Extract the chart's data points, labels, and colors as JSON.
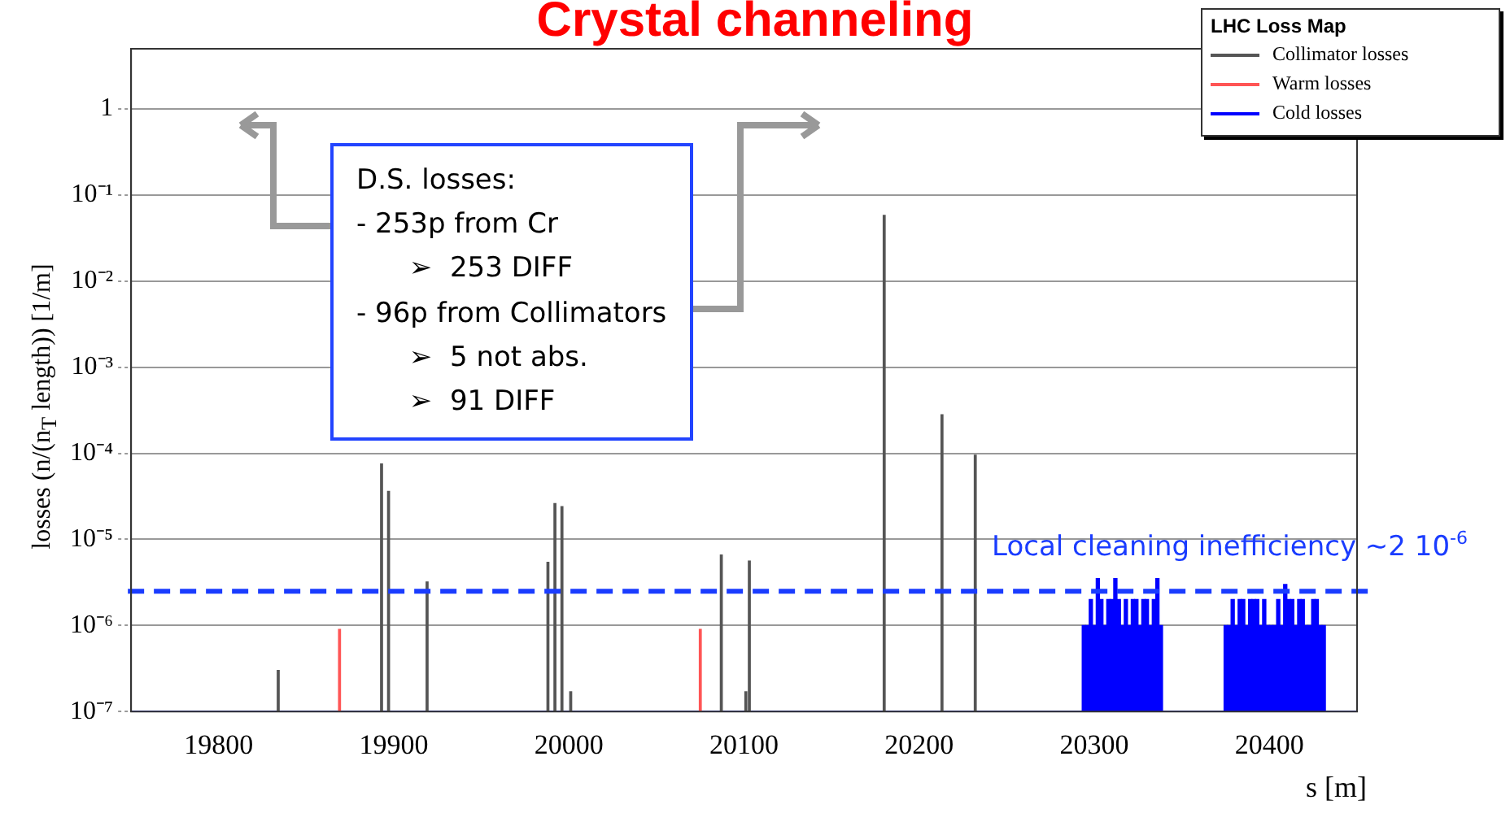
{
  "chart_data": {
    "type": "bar",
    "title": "Crystal channeling",
    "xlabel": "s [m]",
    "ylabel": "losses (n/(n$_{T}$ length)) [1/m]",
    "legend_title": "LHC Loss Map",
    "legend": "top right",
    "grid": "y",
    "log": "y",
    "xlim": [
      19750,
      20450
    ],
    "xticks": [
      19800,
      19900,
      20000,
      20100,
      20200,
      20300,
      20400
    ],
    "ylim": [
      1e-07,
      5
    ],
    "yticks": [
      {
        "value": 1e-07,
        "label": "10⁻⁷"
      },
      {
        "value": 1e-06,
        "label": "10⁻⁶"
      },
      {
        "value": 1e-05,
        "label": "10⁻⁵"
      },
      {
        "value": 0.0001,
        "label": "10⁻⁴"
      },
      {
        "value": 0.001,
        "label": "10⁻³"
      },
      {
        "value": 0.01,
        "label": "10⁻²"
      },
      {
        "value": 0.1,
        "label": "10⁻¹"
      },
      1
    ],
    "series": [
      {
        "name": "Collimator losses",
        "color": "#555555",
        "x": [
          19834,
          19893,
          19897,
          19919,
          19988,
          19992,
          19996,
          20001,
          20087,
          20101,
          20103,
          20180,
          20213,
          20232
        ],
        "values": [
          3e-07,
          7.5e-05,
          3.6e-05,
          3.2e-06,
          5.4e-06,
          2.6e-05,
          2.4e-05,
          1.7e-07,
          6.6e-06,
          1.7e-07,
          5.6e-06,
          0.058,
          0.00028,
          9.5e-05
        ]
      },
      {
        "name": "Warm losses",
        "color": "#ff5555",
        "x": [
          19869,
          20075
        ],
        "values": [
          9e-07,
          9e-07
        ]
      },
      {
        "name": "Cold losses",
        "color": "#0000ff",
        "x": [
          20294,
          20296,
          20298,
          20300,
          20302,
          20304,
          20306,
          20308,
          20310,
          20312,
          20314,
          20316,
          20318,
          20320,
          20322,
          20324,
          20326,
          20328,
          20330,
          20332,
          20334,
          20336,
          20338,
          20375,
          20377,
          20379,
          20381,
          20383,
          20385,
          20387,
          20389,
          20391,
          20393,
          20395,
          20397,
          20399,
          20401,
          20403,
          20405,
          20407,
          20409,
          20411,
          20413,
          20415,
          20417,
          20419,
          20421,
          20423,
          20425,
          20427,
          20429,
          20431
        ],
        "values": [
          1e-06,
          1e-06,
          2e-06,
          1e-06,
          3.5e-06,
          2e-06,
          1e-06,
          2e-06,
          2e-06,
          3.5e-06,
          2e-06,
          1e-06,
          2e-06,
          1e-06,
          2e-06,
          2e-06,
          1e-06,
          2e-06,
          2e-06,
          1e-06,
          2e-06,
          3.5e-06,
          1e-06,
          1e-06,
          1e-06,
          2e-06,
          1e-06,
          2e-06,
          2e-06,
          1e-06,
          2e-06,
          2e-06,
          2e-06,
          1e-06,
          2e-06,
          1e-06,
          1e-06,
          1e-06,
          2e-06,
          1e-06,
          3e-06,
          2e-06,
          2e-06,
          1e-06,
          2e-06,
          2e-06,
          1e-06,
          1e-06,
          2e-06,
          2e-06,
          1e-06,
          1e-06
        ]
      }
    ],
    "ref_lines": [
      {
        "axis": "y",
        "value": 2.5e-06,
        "label": "Local cleaning inefficiency ~2 10$^{-6}$",
        "color": "#1a3cff",
        "line_style": "dashed"
      }
    ],
    "annotations": [
      "D.S. losses:\n- 253p from Cr\n      ➢  253 DIFF\n- 96p from Collimators\n      ➢  5 not abs.\n      ➢  91 DIFF"
    ]
  }
}
